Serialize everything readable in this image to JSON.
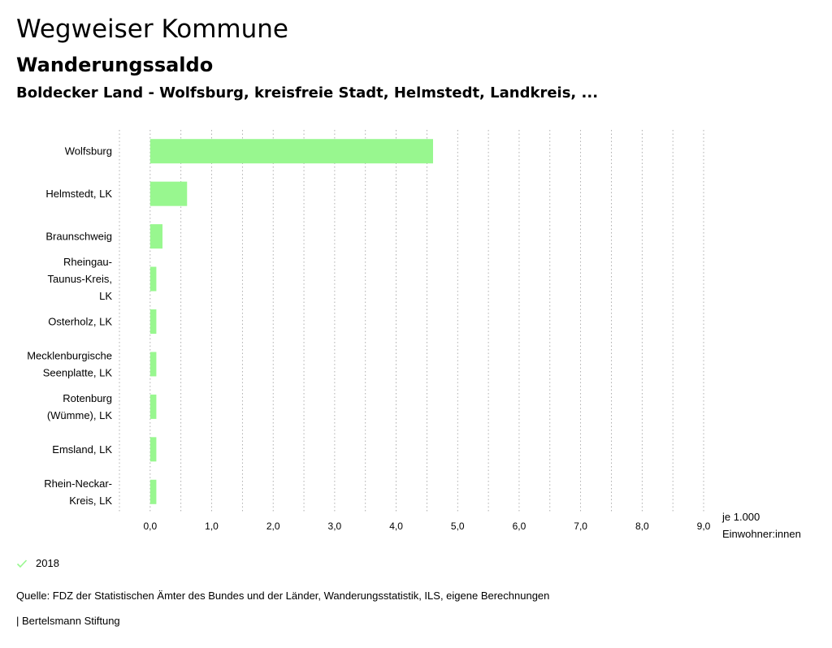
{
  "header": {
    "title": "Wegweiser Kommune",
    "subtitle": "Wanderungssaldo",
    "region": "Boldecker Land - Wolfsburg, kreisfreie Stadt, Helmstedt, Landkreis, ..."
  },
  "chart_data": {
    "type": "bar",
    "orientation": "horizontal",
    "categories": [
      [
        "Wolfsburg"
      ],
      [
        "Helmstedt, LK"
      ],
      [
        "Braunschweig"
      ],
      [
        "Rheingau-",
        "Taunus-Kreis,",
        "LK"
      ],
      [
        "Osterholz, LK"
      ],
      [
        "Mecklenburgische",
        "Seenplatte, LK"
      ],
      [
        "Rotenburg",
        "(Wümme), LK"
      ],
      [
        "Emsland, LK"
      ],
      [
        "Rhein-Neckar-",
        "Kreis, LK"
      ]
    ],
    "series": [
      {
        "name": "2018",
        "values": [
          4.6,
          0.6,
          0.2,
          0.1,
          0.1,
          0.1,
          0.1,
          0.1,
          0.1
        ]
      }
    ],
    "xlim": [
      -0.5,
      9.0
    ],
    "xticks": [
      "0,0",
      "1,0",
      "2,0",
      "3,0",
      "4,0",
      "5,0",
      "6,0",
      "7,0",
      "8,0",
      "9,0"
    ],
    "xlabel": [
      "je 1.000",
      "Einwohner:innen"
    ],
    "bar_color": "#98f78f",
    "grid": true
  },
  "legend": {
    "label": "2018",
    "color": "#98f78f"
  },
  "footer": {
    "source": "Quelle: FDZ der Statistischen Ämter des Bundes und der Länder, Wanderungsstatistik, ILS, eigene Berechnungen",
    "brand": "| Bertelsmann Stiftung"
  }
}
